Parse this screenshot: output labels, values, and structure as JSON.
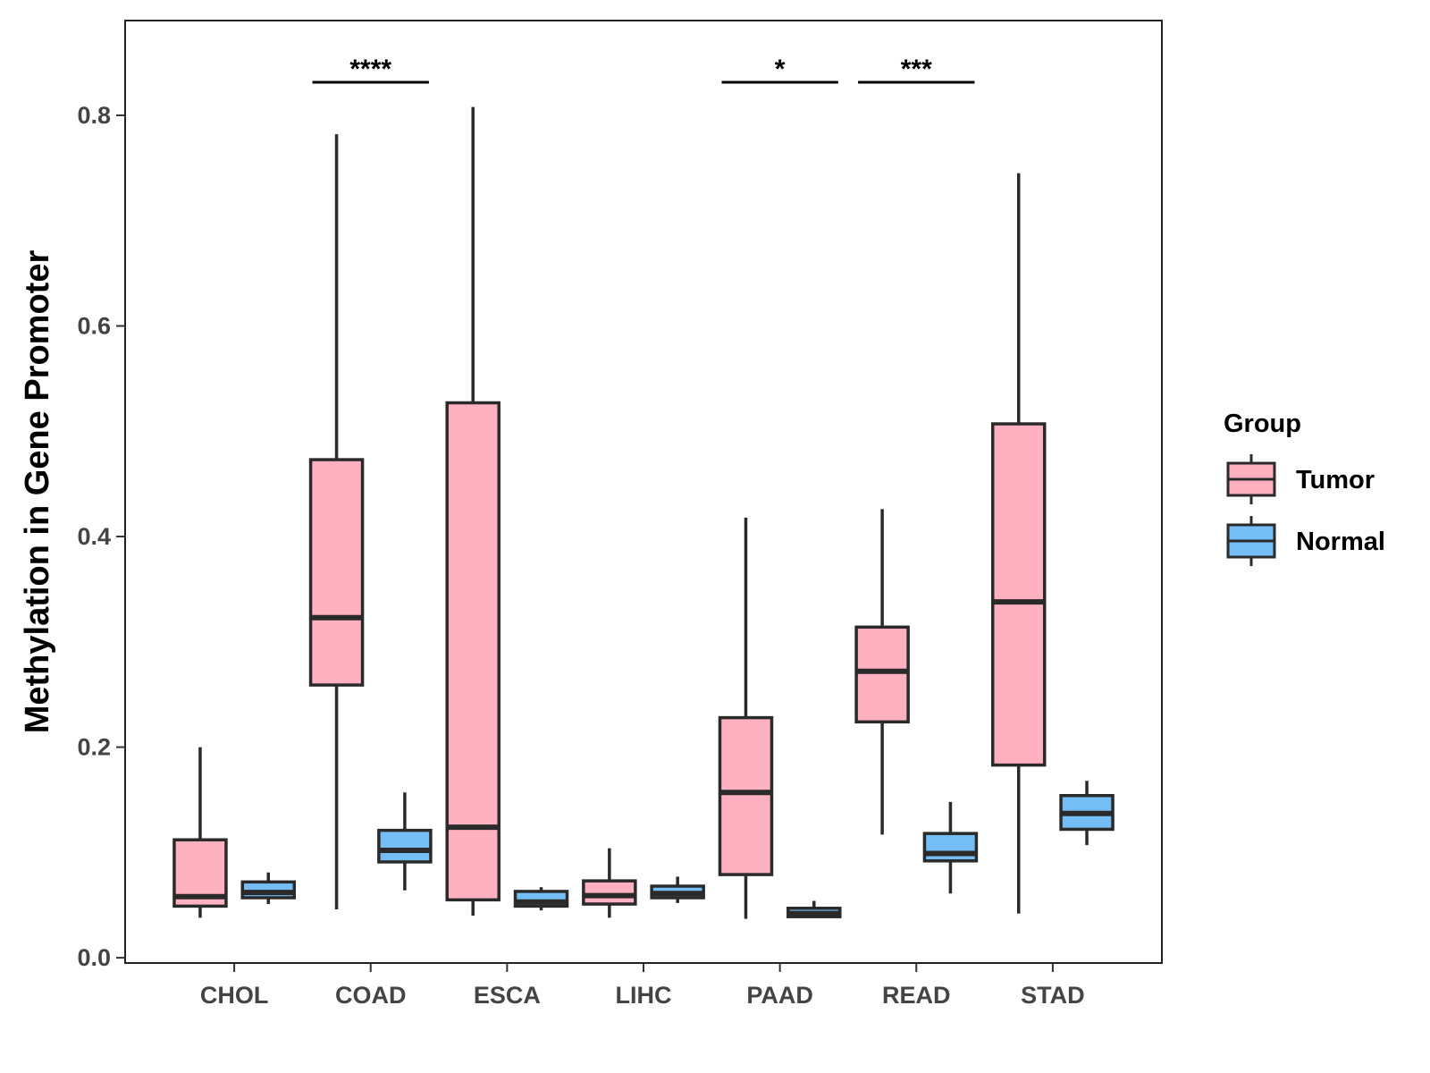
{
  "chart_data": {
    "type": "boxplot",
    "title": "",
    "xlabel": "",
    "ylabel": "Methylation in Gene Promoter",
    "ylim": [
      -0.005,
      0.89
    ],
    "yticks": [
      0.0,
      0.2,
      0.4,
      0.6,
      0.8
    ],
    "ytick_labels": [
      "0.0",
      "0.2",
      "0.4",
      "0.6",
      "0.8"
    ],
    "grid": false,
    "legend": {
      "title": "Group",
      "position": "right",
      "entries": [
        {
          "name": "Tumor",
          "color": "#FFB0C1"
        },
        {
          "name": "Normal",
          "color": "#74BEF5"
        }
      ]
    },
    "categories": [
      "CHOL",
      "COAD",
      "ESCA",
      "LIHC",
      "PAAD",
      "READ",
      "STAD"
    ],
    "series": [
      {
        "name": "Tumor",
        "color": "#FFB0C1",
        "boxes": [
          {
            "min": 0.038,
            "q1": 0.049,
            "median": 0.058,
            "q3": 0.112,
            "max": 0.2
          },
          {
            "min": 0.046,
            "q1": 0.259,
            "median": 0.323,
            "q3": 0.473,
            "max": 0.782
          },
          {
            "min": 0.04,
            "q1": 0.055,
            "median": 0.124,
            "q3": 0.527,
            "max": 0.808
          },
          {
            "min": 0.038,
            "q1": 0.051,
            "median": 0.059,
            "q3": 0.073,
            "max": 0.104
          },
          {
            "min": 0.037,
            "q1": 0.079,
            "median": 0.157,
            "q3": 0.228,
            "max": 0.418
          },
          {
            "min": 0.117,
            "q1": 0.224,
            "median": 0.272,
            "q3": 0.314,
            "max": 0.426
          },
          {
            "min": 0.042,
            "q1": 0.183,
            "median": 0.338,
            "q3": 0.507,
            "max": 0.745
          }
        ]
      },
      {
        "name": "Normal",
        "color": "#74BEF5",
        "boxes": [
          {
            "min": 0.051,
            "q1": 0.057,
            "median": 0.062,
            "q3": 0.072,
            "max": 0.081
          },
          {
            "min": 0.064,
            "q1": 0.091,
            "median": 0.102,
            "q3": 0.121,
            "max": 0.157
          },
          {
            "min": 0.045,
            "q1": 0.049,
            "median": 0.053,
            "q3": 0.063,
            "max": 0.067
          },
          {
            "min": 0.052,
            "q1": 0.057,
            "median": 0.061,
            "q3": 0.068,
            "max": 0.077
          },
          {
            "min": 0.038,
            "q1": 0.039,
            "median": 0.042,
            "q3": 0.047,
            "max": 0.054
          },
          {
            "min": 0.061,
            "q1": 0.092,
            "median": 0.099,
            "q3": 0.118,
            "max": 0.148
          },
          {
            "min": 0.107,
            "q1": 0.122,
            "median": 0.137,
            "q3": 0.154,
            "max": 0.168
          }
        ]
      }
    ],
    "significance": [
      {
        "category": "COAD",
        "label": "****"
      },
      {
        "category": "PAAD",
        "label": "*"
      },
      {
        "category": "READ",
        "label": "***"
      }
    ]
  }
}
